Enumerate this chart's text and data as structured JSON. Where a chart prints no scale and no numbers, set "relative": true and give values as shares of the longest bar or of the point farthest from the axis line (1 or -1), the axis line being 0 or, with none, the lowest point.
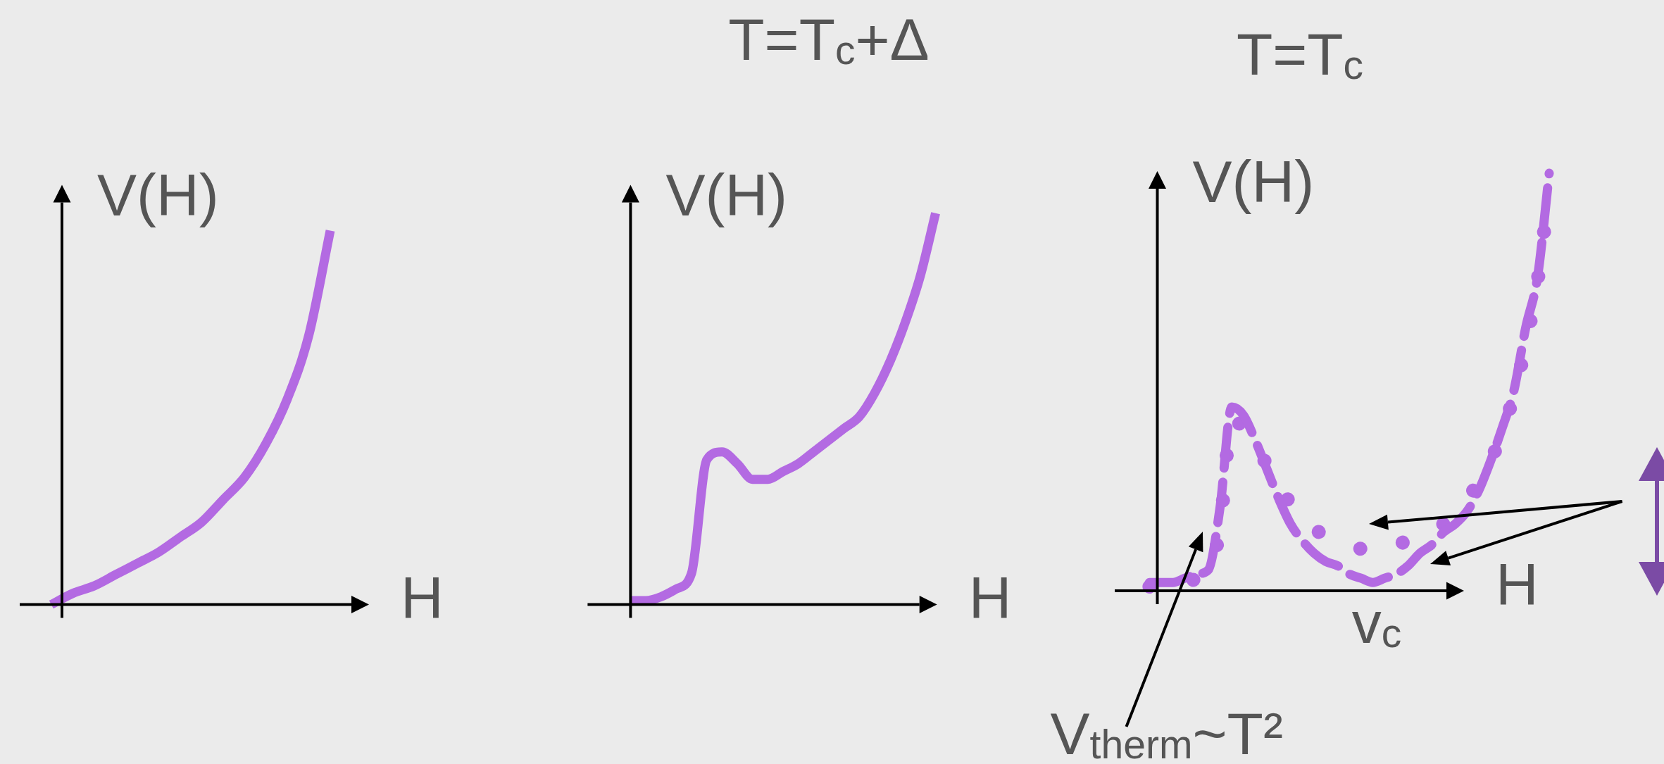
{
  "chart_data": [
    {
      "type": "line",
      "xlabel": "H",
      "ylabel": "V(H)",
      "relative": true,
      "tick_labels": false,
      "color": "#b36ae2",
      "categories": [
        null,
        null,
        null,
        null,
        null,
        null,
        null,
        null,
        null,
        null,
        null,
        null,
        null,
        null
      ],
      "values": [
        0,
        0.03,
        0.05,
        0.08,
        0.11,
        0.14,
        0.18,
        0.22,
        0.28,
        0.34,
        0.43,
        0.55,
        0.72,
        1
      ]
    },
    {
      "type": "line",
      "title": "T=T$_{c}$+Δ",
      "xlabel": "H",
      "ylabel": "V(H)",
      "relative": true,
      "tick_labels": false,
      "color": "#b36ae2",
      "categories": [
        null,
        null,
        null,
        null,
        null,
        null,
        null,
        null,
        null,
        null,
        null,
        null,
        null,
        null,
        null,
        null,
        null,
        null,
        null,
        null,
        null
      ],
      "values": [
        0.01,
        0.01,
        0.02,
        0.04,
        0.08,
        0.37,
        0.39,
        0.36,
        0.32,
        0.32,
        0.34,
        0.36,
        0.39,
        0.42,
        0.45,
        0.48,
        0.54,
        0.62,
        0.72,
        0.84,
        1
      ]
    },
    {
      "type": "line",
      "title": "T=T$_{c}$",
      "xlabel": "H",
      "ylabel": "V(H)",
      "relative": true,
      "tick_labels": false,
      "categories": [
        null,
        null,
        null,
        null,
        null,
        null,
        null,
        null,
        null,
        null,
        null,
        null,
        null,
        null,
        null,
        null,
        null,
        null,
        null,
        null,
        null,
        null,
        null,
        null,
        null,
        null,
        null,
        null,
        null,
        null,
        null,
        null,
        null,
        null,
        null
      ],
      "series": [
        {
          "color": "#b36ae2",
          "line_style": "dashed",
          "values": [
            0.02,
            0.02,
            0.02,
            0.03,
            0.04,
            0.05,
            0.2,
            0.44,
            0.42,
            0.36,
            0.29,
            0.22,
            0.16,
            0.12,
            0.09,
            0.07,
            0.06,
            0.04,
            0.03,
            0.02,
            0.03,
            0.04,
            0.06,
            0.09,
            0.11,
            0.14,
            0.16,
            0.19,
            0.24,
            0.31,
            0.39,
            0.48,
            0.63,
            0.75,
            1
          ]
        },
        {
          "color": "#b36ae2",
          "line_style": "dotted",
          "values": [
            0.01,
            0.02,
            0.02,
            0.02,
            0.03,
            0.05,
            0.15,
            0.41,
            0.39,
            0.35,
            0.3,
            0.25,
            0.21,
            0.18,
            0.15,
            0.13,
            0.12,
            0.11,
            0.1,
            0.09,
            0.1,
            0.11,
            0.12,
            0.13,
            0.15,
            0.16,
            0.19,
            0.22,
            0.26,
            0.31,
            0.38,
            0.47,
            0.59,
            0.74,
            0.96
          ]
        }
      ],
      "annotations": [
        "v$_{c}$",
        "V$_{therm}$~T²"
      ]
    }
  ]
}
